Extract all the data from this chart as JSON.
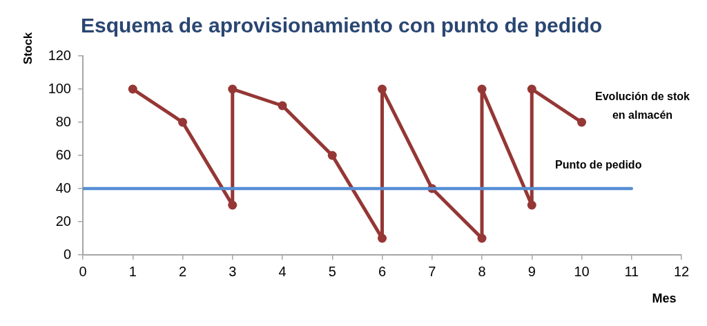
{
  "chart_data": {
    "type": "line",
    "title": "Esquema de aprovisionamiento con punto de pedido",
    "xlabel": "Mes",
    "ylabel": "Stock",
    "xlim": [
      0,
      12
    ],
    "xticks": [
      0,
      1,
      2,
      3,
      4,
      5,
      6,
      7,
      8,
      9,
      10,
      11,
      12
    ],
    "ylim": [
      0,
      120
    ],
    "yticks": [
      0,
      20,
      40,
      60,
      80,
      100,
      120
    ],
    "grid": false,
    "legend": false,
    "marker": "circle",
    "line_style": "solid",
    "series": [
      {
        "name": "Evolución de stok en almacén",
        "color": "#953735",
        "x": [
          1,
          2,
          3,
          3,
          4,
          5,
          6,
          6,
          7,
          8,
          8,
          9,
          9,
          10
        ],
        "values": [
          100,
          80,
          30,
          100,
          90,
          60,
          10,
          100,
          40,
          10,
          100,
          30,
          100,
          80
        ]
      },
      {
        "name": "Punto de pedido",
        "color": "#558ed5",
        "marker": "none",
        "x": [
          0,
          11
        ],
        "values": [
          40,
          40
        ]
      }
    ]
  }
}
